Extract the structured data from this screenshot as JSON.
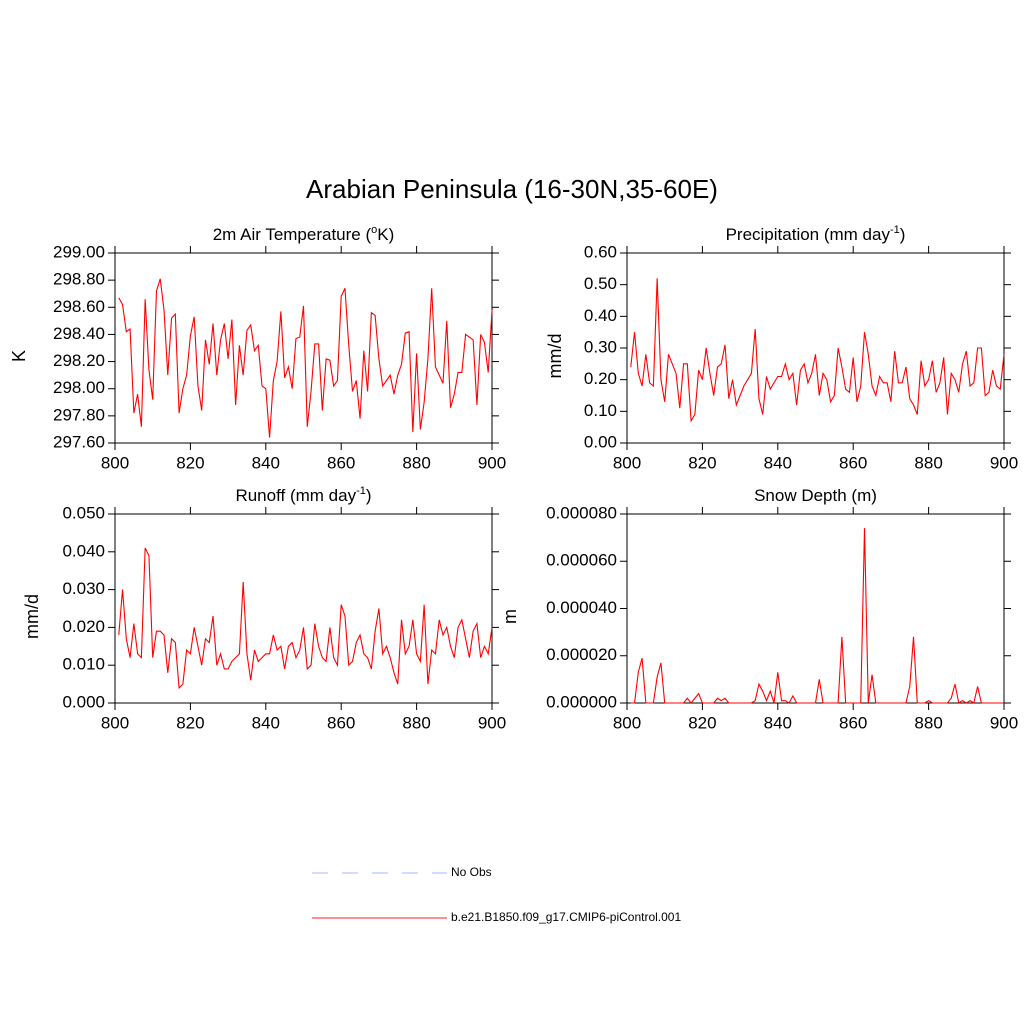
{
  "title": "Arabian Peninsula (16-30N,35-60E)",
  "legend": [
    {
      "name": "No Obs",
      "color": "#a9b3ff",
      "dashed": true
    },
    {
      "name": "b.e21.B1850.f09_g17.CMIP6-piControl.001",
      "color": "#ff2020",
      "dashed": false
    }
  ],
  "chart_data": [
    {
      "type": "line",
      "title": {
        "text": "2m Air Temperature (",
        "sup": "o",
        "tail": "K)"
      },
      "ylabel": "K",
      "color": "#ff0000",
      "x": [
        801,
        802,
        803,
        804,
        805,
        806,
        807,
        808,
        809,
        810,
        811,
        812,
        813,
        814,
        815,
        816,
        817,
        818,
        819,
        820,
        821,
        822,
        823,
        824,
        825,
        826,
        827,
        828,
        829,
        830,
        831,
        832,
        833,
        834,
        835,
        836,
        837,
        838,
        839,
        840,
        841,
        842,
        843,
        844,
        845,
        846,
        847,
        848,
        849,
        850,
        851,
        852,
        853,
        854,
        855,
        856,
        857,
        858,
        859,
        860,
        861,
        862,
        863,
        864,
        865,
        866,
        867,
        868,
        869,
        870,
        871,
        872,
        873,
        874,
        875,
        876,
        877,
        878,
        879,
        880,
        881,
        882,
        883,
        884,
        885,
        886,
        887,
        888,
        889,
        890,
        891,
        892,
        893,
        894,
        895,
        896,
        897,
        898,
        899,
        900
      ],
      "values": [
        298.67,
        298.62,
        298.42,
        298.44,
        297.82,
        297.96,
        297.72,
        298.66,
        298.14,
        297.92,
        298.72,
        298.81,
        298.58,
        298.1,
        298.52,
        298.55,
        297.82,
        298.0,
        298.1,
        298.39,
        298.53,
        298.02,
        297.84,
        298.36,
        298.18,
        298.48,
        298.1,
        298.36,
        298.48,
        298.22,
        298.51,
        297.88,
        298.32,
        298.1,
        298.43,
        298.47,
        298.28,
        298.32,
        298.02,
        298.0,
        297.64,
        298.06,
        298.2,
        298.57,
        298.08,
        298.16,
        298.0,
        298.37,
        298.38,
        298.61,
        297.72,
        297.98,
        298.33,
        298.33,
        297.84,
        298.22,
        298.21,
        298.02,
        298.06,
        298.68,
        298.74,
        298.32,
        297.98,
        298.06,
        297.78,
        298.28,
        297.98,
        298.56,
        298.54,
        298.22,
        298.02,
        298.06,
        298.1,
        297.96,
        298.1,
        298.18,
        298.41,
        298.42,
        297.68,
        298.26,
        297.7,
        297.9,
        298.22,
        298.74,
        298.16,
        298.1,
        298.04,
        298.5,
        297.86,
        297.96,
        298.12,
        298.12,
        298.4,
        298.38,
        298.36,
        297.88,
        298.4,
        298.34,
        298.12,
        298.58
      ],
      "xlim": [
        800,
        900
      ],
      "xticks": [
        800,
        820,
        840,
        860,
        880,
        900
      ],
      "ylim": [
        297.6,
        299.0
      ],
      "yticks": [
        {
          "value": 297.6,
          "label": "297.60"
        },
        {
          "value": 297.8,
          "label": "297.80"
        },
        {
          "value": 298.0,
          "label": "298.00"
        },
        {
          "value": 298.2,
          "label": "298.20"
        },
        {
          "value": 298.4,
          "label": "298.40"
        },
        {
          "value": 298.6,
          "label": "298.60"
        },
        {
          "value": 298.8,
          "label": "298.80"
        },
        {
          "value": 299.0,
          "label": "299.00"
        }
      ]
    },
    {
      "type": "line",
      "title": {
        "text": "Precipitation (mm day",
        "sup": "-1",
        "tail": ")"
      },
      "ylabel": "mm/d",
      "color": "#ff0000",
      "x": [
        801,
        802,
        803,
        804,
        805,
        806,
        807,
        808,
        809,
        810,
        811,
        812,
        813,
        814,
        815,
        816,
        817,
        818,
        819,
        820,
        821,
        822,
        823,
        824,
        825,
        826,
        827,
        828,
        829,
        830,
        831,
        832,
        833,
        834,
        835,
        836,
        837,
        838,
        839,
        840,
        841,
        842,
        843,
        844,
        845,
        846,
        847,
        848,
        849,
        850,
        851,
        852,
        853,
        854,
        855,
        856,
        857,
        858,
        859,
        860,
        861,
        862,
        863,
        864,
        865,
        866,
        867,
        868,
        869,
        870,
        871,
        872,
        873,
        874,
        875,
        876,
        877,
        878,
        879,
        880,
        881,
        882,
        883,
        884,
        885,
        886,
        887,
        888,
        889,
        890,
        891,
        892,
        893,
        894,
        895,
        896,
        897,
        898,
        899,
        900
      ],
      "values": [
        0.24,
        0.35,
        0.22,
        0.18,
        0.28,
        0.19,
        0.18,
        0.52,
        0.2,
        0.13,
        0.28,
        0.25,
        0.22,
        0.11,
        0.25,
        0.25,
        0.07,
        0.09,
        0.23,
        0.2,
        0.3,
        0.22,
        0.15,
        0.24,
        0.25,
        0.31,
        0.14,
        0.2,
        0.12,
        0.15,
        0.18,
        0.2,
        0.22,
        0.36,
        0.14,
        0.09,
        0.21,
        0.17,
        0.19,
        0.21,
        0.21,
        0.25,
        0.2,
        0.22,
        0.12,
        0.23,
        0.25,
        0.19,
        0.22,
        0.28,
        0.15,
        0.22,
        0.2,
        0.13,
        0.15,
        0.3,
        0.24,
        0.17,
        0.16,
        0.27,
        0.13,
        0.18,
        0.35,
        0.28,
        0.18,
        0.15,
        0.21,
        0.19,
        0.19,
        0.13,
        0.29,
        0.19,
        0.19,
        0.24,
        0.14,
        0.12,
        0.09,
        0.26,
        0.18,
        0.2,
        0.26,
        0.16,
        0.19,
        0.27,
        0.09,
        0.22,
        0.2,
        0.16,
        0.25,
        0.29,
        0.18,
        0.19,
        0.3,
        0.3,
        0.15,
        0.16,
        0.23,
        0.18,
        0.17,
        0.28
      ],
      "xlim": [
        800,
        900
      ],
      "xticks": [
        800,
        820,
        840,
        860,
        880,
        900
      ],
      "ylim": [
        0,
        0.6
      ],
      "yticks": [
        {
          "value": 0,
          "label": "0.00"
        },
        {
          "value": 0.1,
          "label": "0.10"
        },
        {
          "value": 0.2,
          "label": "0.20"
        },
        {
          "value": 0.3,
          "label": "0.30"
        },
        {
          "value": 0.4,
          "label": "0.40"
        },
        {
          "value": 0.5,
          "label": "0.50"
        },
        {
          "value": 0.6,
          "label": "0.60"
        }
      ]
    },
    {
      "type": "line",
      "title": {
        "text": "Runoff (mm day",
        "sup": "-1",
        "tail": ")"
      },
      "ylabel": "mm/d",
      "color": "#ff0000",
      "x": [
        801,
        802,
        803,
        804,
        805,
        806,
        807,
        808,
        809,
        810,
        811,
        812,
        813,
        814,
        815,
        816,
        817,
        818,
        819,
        820,
        821,
        822,
        823,
        824,
        825,
        826,
        827,
        828,
        829,
        830,
        831,
        832,
        833,
        834,
        835,
        836,
        837,
        838,
        839,
        840,
        841,
        842,
        843,
        844,
        845,
        846,
        847,
        848,
        849,
        850,
        851,
        852,
        853,
        854,
        855,
        856,
        857,
        858,
        859,
        860,
        861,
        862,
        863,
        864,
        865,
        866,
        867,
        868,
        869,
        870,
        871,
        872,
        873,
        874,
        875,
        876,
        877,
        878,
        879,
        880,
        881,
        882,
        883,
        884,
        885,
        886,
        887,
        888,
        889,
        890,
        891,
        892,
        893,
        894,
        895,
        896,
        897,
        898,
        899,
        900
      ],
      "values": [
        0.018,
        0.03,
        0.017,
        0.012,
        0.021,
        0.013,
        0.012,
        0.041,
        0.039,
        0.012,
        0.019,
        0.019,
        0.018,
        0.008,
        0.017,
        0.016,
        0.004,
        0.005,
        0.014,
        0.013,
        0.02,
        0.015,
        0.01,
        0.017,
        0.016,
        0.023,
        0.01,
        0.013,
        0.009,
        0.009,
        0.011,
        0.012,
        0.013,
        0.032,
        0.013,
        0.006,
        0.014,
        0.011,
        0.012,
        0.013,
        0.013,
        0.018,
        0.014,
        0.015,
        0.009,
        0.015,
        0.016,
        0.012,
        0.014,
        0.02,
        0.009,
        0.01,
        0.021,
        0.015,
        0.012,
        0.011,
        0.02,
        0.012,
        0.01,
        0.026,
        0.023,
        0.01,
        0.011,
        0.016,
        0.018,
        0.013,
        0.012,
        0.009,
        0.019,
        0.025,
        0.013,
        0.015,
        0.012,
        0.008,
        0.005,
        0.022,
        0.013,
        0.015,
        0.022,
        0.013,
        0.011,
        0.026,
        0.005,
        0.014,
        0.013,
        0.022,
        0.018,
        0.02,
        0.015,
        0.012,
        0.02,
        0.022,
        0.017,
        0.012,
        0.019,
        0.021,
        0.012,
        0.015,
        0.013,
        0.02
      ],
      "xlim": [
        800,
        900
      ],
      "xticks": [
        800,
        820,
        840,
        860,
        880,
        900
      ],
      "ylim": [
        0,
        0.05
      ],
      "yticks": [
        {
          "value": 0,
          "label": "0.000"
        },
        {
          "value": 0.01,
          "label": "0.010"
        },
        {
          "value": 0.02,
          "label": "0.020"
        },
        {
          "value": 0.03,
          "label": "0.030"
        },
        {
          "value": 0.04,
          "label": "0.040"
        },
        {
          "value": 0.05,
          "label": "0.050"
        }
      ]
    },
    {
      "type": "line",
      "title": {
        "text": "Snow Depth (m)"
      },
      "ylabel": "m",
      "color": "#ff0000",
      "x": [
        801,
        802,
        803,
        804,
        805,
        806,
        807,
        808,
        809,
        810,
        811,
        812,
        813,
        814,
        815,
        816,
        817,
        818,
        819,
        820,
        821,
        822,
        823,
        824,
        825,
        826,
        827,
        828,
        829,
        830,
        831,
        832,
        833,
        834,
        835,
        836,
        837,
        838,
        839,
        840,
        841,
        842,
        843,
        844,
        845,
        846,
        847,
        848,
        849,
        850,
        851,
        852,
        853,
        854,
        855,
        856,
        857,
        858,
        859,
        860,
        861,
        862,
        863,
        864,
        865,
        866,
        867,
        868,
        869,
        870,
        871,
        872,
        873,
        874,
        875,
        876,
        877,
        878,
        879,
        880,
        881,
        882,
        883,
        884,
        885,
        886,
        887,
        888,
        889,
        890,
        891,
        892,
        893,
        894,
        895,
        896,
        897,
        898,
        899,
        900
      ],
      "values": [
        0,
        0,
        1.3e-05,
        1.9e-05,
        0,
        0,
        0,
        1.1e-05,
        1.7e-05,
        0,
        0,
        0,
        0,
        0,
        0,
        2e-06,
        0,
        2e-06,
        4e-06,
        0,
        0,
        0,
        0,
        2e-06,
        1e-06,
        2e-06,
        0,
        0,
        0,
        0,
        0,
        0,
        0,
        1e-06,
        8e-06,
        5e-06,
        1e-06,
        5e-06,
        0,
        1.3e-05,
        1e-06,
        1e-06,
        0,
        3e-06,
        0,
        0,
        0,
        0,
        0,
        0,
        1e-05,
        0,
        0,
        0,
        0,
        0,
        2.8e-05,
        0,
        0,
        0,
        0,
        0,
        7.4e-05,
        0,
        1.2e-05,
        0,
        0,
        0,
        0,
        0,
        0,
        0,
        0,
        0,
        7e-06,
        2.8e-05,
        0,
        0,
        0,
        1e-06,
        0,
        0,
        0,
        0,
        0,
        2e-06,
        8e-06,
        0,
        1e-06,
        0,
        1e-06,
        0,
        7e-06,
        0,
        0,
        0,
        0,
        0,
        0,
        0
      ],
      "xlim": [
        800,
        900
      ],
      "xticks": [
        800,
        820,
        840,
        860,
        880,
        900
      ],
      "ylim": [
        0,
        8e-05
      ],
      "yticks": [
        {
          "value": 0,
          "label": "0.000000"
        },
        {
          "value": 2e-05,
          "label": "0.000020"
        },
        {
          "value": 4e-05,
          "label": "0.000040"
        },
        {
          "value": 6e-05,
          "label": "0.000060"
        },
        {
          "value": 8e-05,
          "label": "0.000080"
        }
      ]
    }
  ]
}
